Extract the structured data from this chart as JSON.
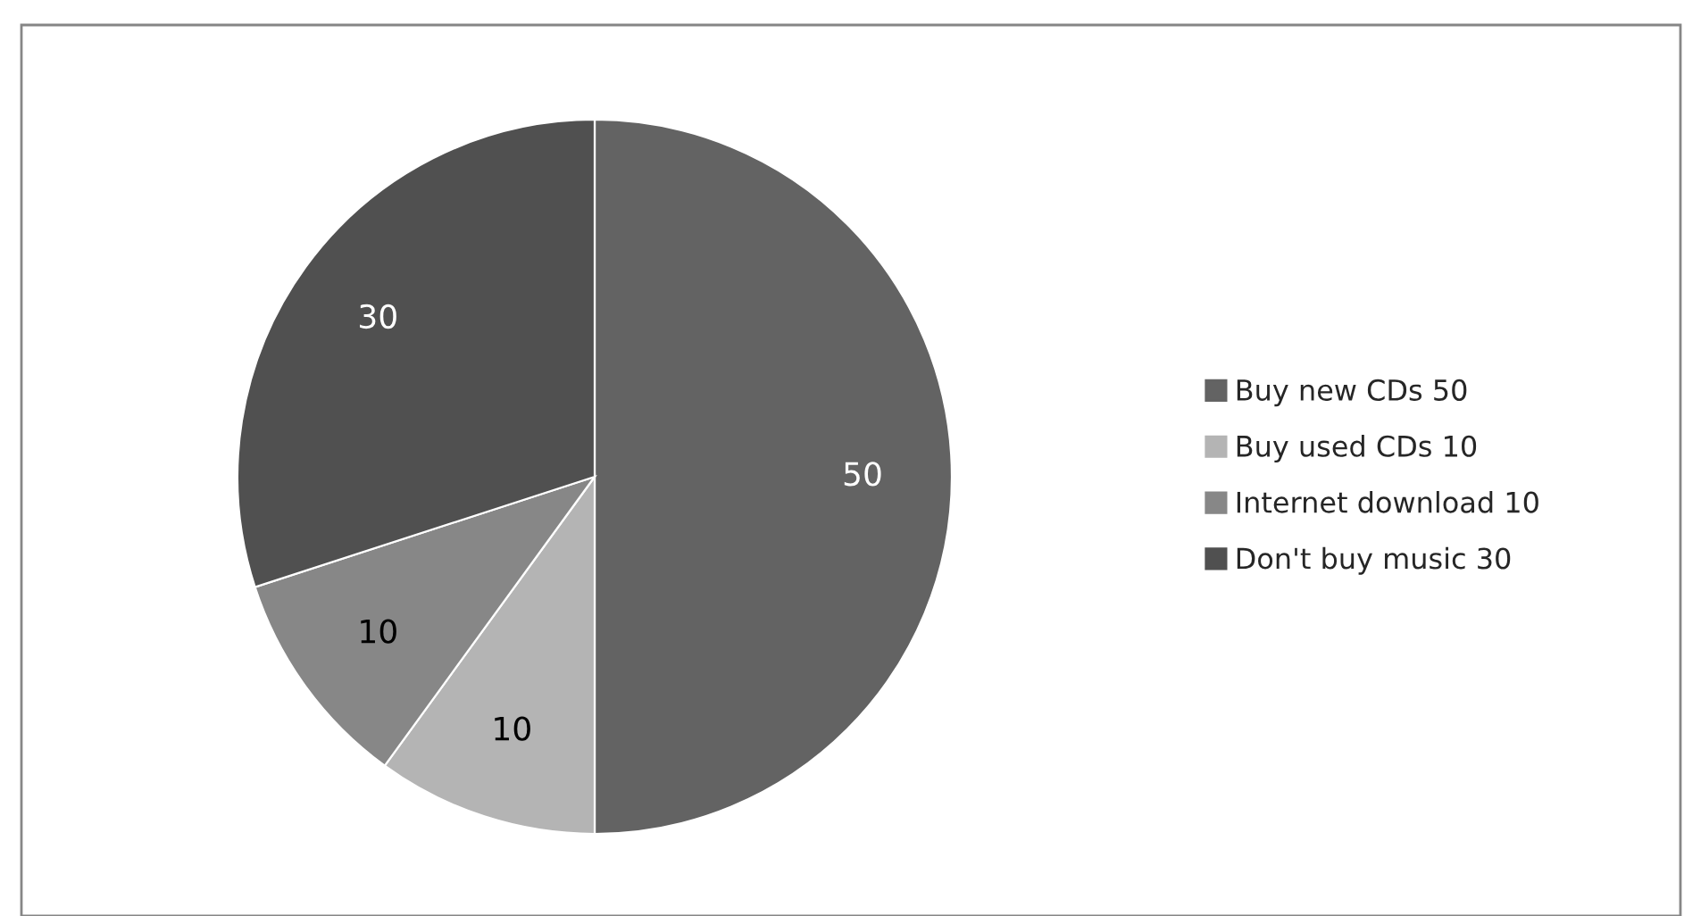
{
  "chart_data": {
    "type": "pie",
    "categories": [
      "Buy new CDs 50",
      "Buy used CDs 10",
      "Internet download 10",
      "Don't buy music 30"
    ],
    "values": [
      50,
      10,
      10,
      30
    ],
    "colors": [
      "#636363",
      "#b4b4b4",
      "#878787",
      "#505050"
    ],
    "data_labels": true,
    "legend": "right"
  }
}
